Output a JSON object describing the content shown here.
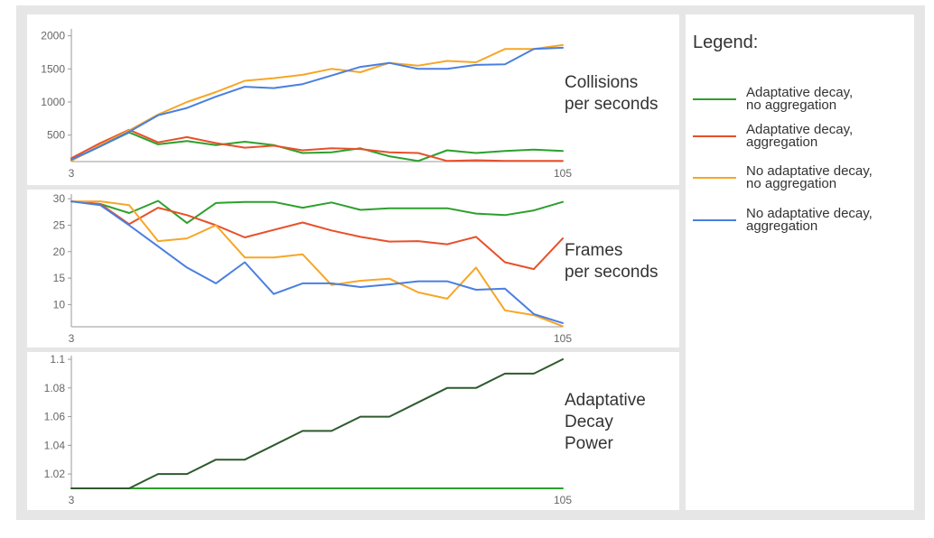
{
  "legend": {
    "title": "Legend:",
    "items": [
      {
        "label": "Adaptative decay,\nno aggregation",
        "color": "#2ca02c"
      },
      {
        "label": "Adaptative decay,\naggregation",
        "color": "#e8502a"
      },
      {
        "label": "No adaptative decay,\nno aggregation",
        "color": "#f7a627"
      },
      {
        "label": "No adaptative decay,\naggregation",
        "color": "#4a7fe0"
      }
    ]
  },
  "chart_data": [
    {
      "type": "line",
      "title": "Collisions\nper seconds",
      "x": [
        3,
        9,
        15,
        21,
        27,
        33,
        39,
        45,
        51,
        57,
        63,
        69,
        75,
        81,
        87,
        93,
        99,
        105
      ],
      "x_tick_labels": [
        "3",
        "105"
      ],
      "y_ticks": [
        500,
        1000,
        1500,
        2000
      ],
      "ylim": [
        100,
        2050
      ],
      "grid": false,
      "series": [
        {
          "name": "Adaptative decay, no aggregation",
          "color": "#2ca02c",
          "values": [
            120,
            330,
            540,
            360,
            410,
            350,
            400,
            350,
            230,
            240,
            300,
            180,
            110,
            270,
            230,
            260,
            280,
            260
          ]
        },
        {
          "name": "Adaptative decay, aggregation",
          "color": "#e8502a",
          "values": [
            150,
            380,
            580,
            390,
            470,
            380,
            310,
            340,
            270,
            300,
            290,
            240,
            230,
            110,
            120,
            110,
            110,
            110
          ]
        },
        {
          "name": "No adaptative decay, no aggregation",
          "color": "#f7a627",
          "values": [
            110,
            350,
            570,
            810,
            1000,
            1150,
            1320,
            1360,
            1410,
            1500,
            1450,
            1590,
            1550,
            1620,
            1600,
            1800,
            1800,
            1860
          ]
        },
        {
          "name": "No adaptative decay, aggregation",
          "color": "#4a7fe0",
          "values": [
            130,
            330,
            550,
            800,
            910,
            1080,
            1230,
            1210,
            1270,
            1400,
            1530,
            1590,
            1500,
            1500,
            1560,
            1570,
            1800,
            1820
          ]
        }
      ]
    },
    {
      "type": "line",
      "title": "Frames\nper seconds",
      "x": [
        3,
        9,
        15,
        21,
        27,
        33,
        39,
        45,
        51,
        57,
        63,
        69,
        75,
        81,
        87,
        93,
        99,
        105
      ],
      "x_tick_labels": [
        "3",
        "105"
      ],
      "y_ticks": [
        10,
        15,
        20,
        25,
        30
      ],
      "ylim": [
        5.8,
        30.2
      ],
      "grid": false,
      "series": [
        {
          "name": "Adaptative decay, no aggregation",
          "color": "#2ca02c",
          "values": [
            29.5,
            29,
            27.3,
            29.6,
            25.4,
            29.2,
            29.4,
            29.4,
            28.3,
            29.3,
            27.9,
            28.2,
            28.2,
            28.2,
            27.2,
            26.9,
            27.8,
            29.4
          ]
        },
        {
          "name": "Adaptative decay, aggregation",
          "color": "#e8502a",
          "values": [
            29.5,
            29,
            25.2,
            28.3,
            26.9,
            25,
            22.7,
            24.1,
            25.5,
            24,
            22.8,
            21.9,
            22,
            21.4,
            22.8,
            18,
            16.7,
            22.5
          ]
        },
        {
          "name": "No adaptative decay, no aggregation",
          "color": "#f7a627",
          "values": [
            29.5,
            29.5,
            28.8,
            22,
            22.5,
            25,
            18.9,
            18.9,
            19.5,
            13.7,
            14.5,
            14.9,
            12.3,
            11.1,
            17,
            8.9,
            8,
            5.9
          ]
        },
        {
          "name": "No adaptative decay, aggregation",
          "color": "#4a7fe0",
          "values": [
            29.5,
            28.8,
            25,
            21,
            17,
            14,
            18,
            12,
            14,
            14,
            13.3,
            13.8,
            14.4,
            14.4,
            12.8,
            13,
            8.2,
            6.5
          ]
        }
      ]
    },
    {
      "type": "line",
      "title": "Adaptative\nDecay\nPower",
      "x": [
        3,
        9,
        15,
        21,
        27,
        33,
        39,
        45,
        51,
        57,
        63,
        69,
        75,
        81,
        87,
        93,
        99,
        105
      ],
      "x_tick_labels": [
        "3",
        "105"
      ],
      "y_ticks": [
        1.02,
        1.04,
        1.06,
        1.08,
        1.1
      ],
      "y_tick_labels": [
        "1.02",
        "1.04",
        "1.06",
        "1.08",
        "1.1"
      ],
      "ylim": [
        1.01,
        1.1
      ],
      "grid": false,
      "series": [
        {
          "name": "Adaptative decay, no aggregation",
          "color": "#2ca02c",
          "values": [
            1.01,
            1.01,
            1.01,
            1.01,
            1.01,
            1.01,
            1.01,
            1.01,
            1.01,
            1.01,
            1.01,
            1.01,
            1.01,
            1.01,
            1.01,
            1.01,
            1.01,
            1.01
          ]
        },
        {
          "name": "Adaptative decay, aggregation",
          "color": "#2e5a2e",
          "values": [
            1.01,
            1.01,
            1.01,
            1.02,
            1.02,
            1.03,
            1.03,
            1.04,
            1.05,
            1.05,
            1.06,
            1.06,
            1.07,
            1.08,
            1.08,
            1.09,
            1.09,
            1.1
          ]
        }
      ]
    }
  ]
}
